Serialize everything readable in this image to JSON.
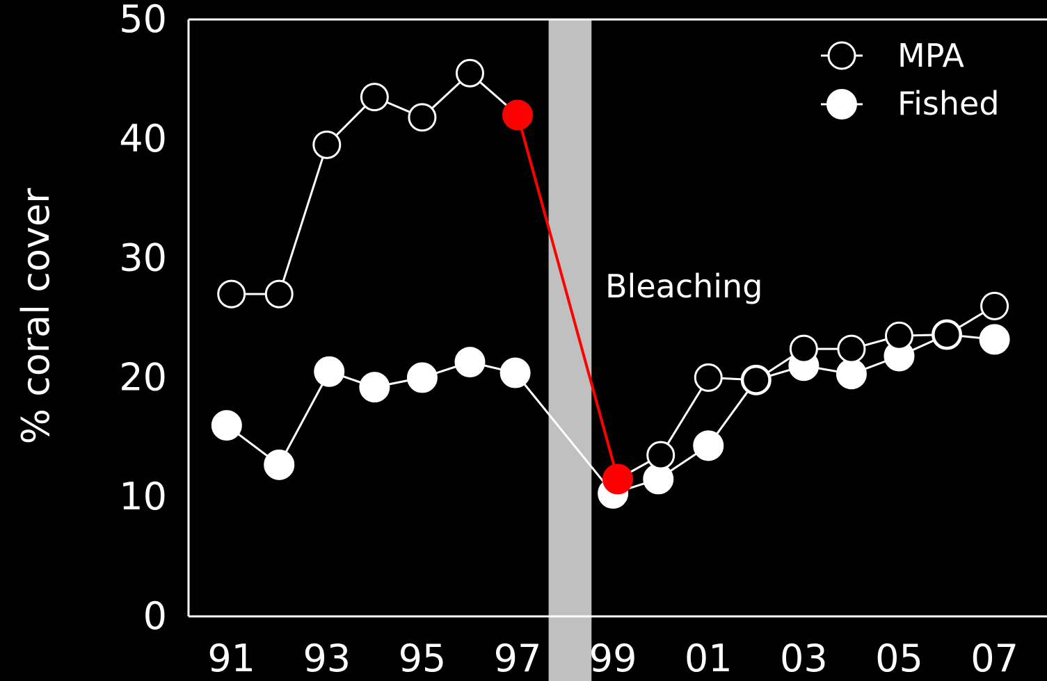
{
  "colors": {
    "background": "#000000",
    "foreground": "#ffffff",
    "highlight": "#ff0000",
    "bleaching_band": "#c0c0c0"
  },
  "chart_data": {
    "type": "line",
    "title": "",
    "xlabel": "",
    "ylabel": "% coral cover",
    "ylim": [
      0,
      50
    ],
    "xlim": [
      1990.1,
      2008.1
    ],
    "yticks": [
      "0",
      "10",
      "20",
      "30",
      "40",
      "50"
    ],
    "xticks": [
      "91",
      "93",
      "95",
      "97",
      "99",
      "01",
      "03",
      "05",
      "07"
    ],
    "grid": false,
    "legend_position": "top-right",
    "series": [
      {
        "name": "MPA",
        "marker": "open-circle",
        "x": [
          1991,
          1992,
          1993,
          1994,
          1995,
          1996,
          1997,
          1999.1,
          2000,
          2001,
          2002,
          2003,
          2004,
          2005,
          2006,
          2007
        ],
        "y": [
          27.0,
          27.0,
          39.5,
          43.5,
          41.8,
          45.5,
          42.0,
          11.5,
          13.5,
          20.0,
          19.8,
          22.4,
          22.4,
          23.5,
          23.6,
          26.0
        ]
      },
      {
        "name": "Fished",
        "marker": "filled-circle",
        "x": [
          1990.9,
          1992,
          1993.05,
          1994,
          1995,
          1996,
          1996.95,
          1999,
          1999.95,
          2001,
          2002,
          2003,
          2004,
          2005,
          2006,
          2007
        ],
        "y": [
          16.0,
          12.7,
          20.5,
          19.2,
          20.0,
          21.3,
          20.4,
          10.3,
          11.5,
          14.3,
          19.8,
          21.0,
          20.3,
          21.8,
          23.6,
          23.2
        ]
      }
    ],
    "highlight": {
      "x": [
        1997,
        1999.1
      ],
      "y": [
        42.0,
        11.5
      ]
    },
    "bleaching_band": {
      "x_start": 1997.65,
      "x_end": 1998.55,
      "label": "Bleaching"
    }
  }
}
